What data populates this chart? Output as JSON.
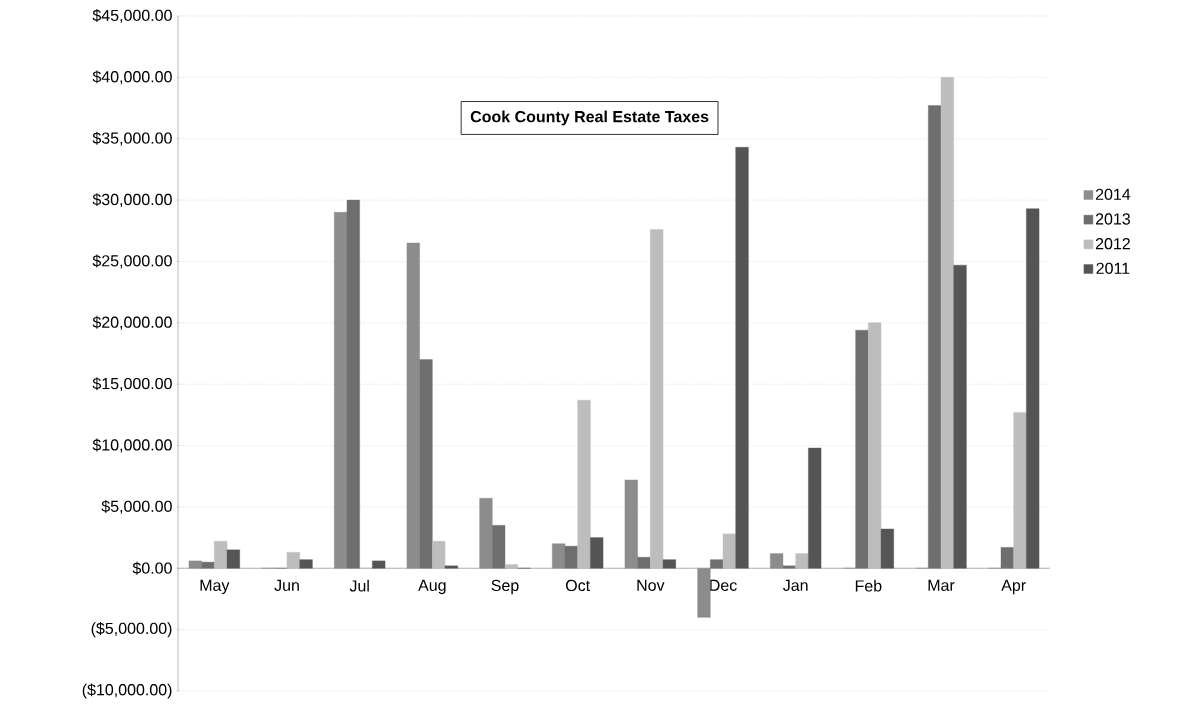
{
  "chart_data": {
    "type": "bar",
    "title": "Cook County Real Estate Taxes",
    "categories": [
      "May",
      "Jun",
      "Jul",
      "Aug",
      "Sep",
      "Oct",
      "Nov",
      "Dec",
      "Jan",
      "Feb",
      "Mar",
      "Apr"
    ],
    "series": [
      {
        "name": "2014",
        "color": "#8c8c8c",
        "values": [
          600,
          0,
          29000,
          26500,
          5700,
          2000,
          7200,
          -4000,
          1200,
          0,
          0,
          0
        ]
      },
      {
        "name": "2013",
        "color": "#6e6e6e",
        "values": [
          500,
          0,
          30000,
          17000,
          3500,
          1800,
          900,
          700,
          200,
          19400,
          37700,
          1700
        ]
      },
      {
        "name": "2012",
        "color": "#bdbdbd",
        "values": [
          2200,
          1300,
          0,
          2200,
          300,
          13700,
          27600,
          2800,
          1200,
          20000,
          40000,
          12700
        ]
      },
      {
        "name": "2011",
        "color": "#555555",
        "values": [
          1500,
          700,
          600,
          200,
          0,
          2500,
          700,
          34300,
          9800,
          3200,
          24700,
          29300
        ]
      }
    ],
    "ylim": [
      -10000,
      45000
    ],
    "yticks": [
      {
        "value": -10000,
        "label": "($10,000.00)"
      },
      {
        "value": -5000,
        "label": "($5,000.00)"
      },
      {
        "value": 0,
        "label": "$0.00"
      },
      {
        "value": 5000,
        "label": "$5,000.00"
      },
      {
        "value": 10000,
        "label": "$10,000.00"
      },
      {
        "value": 15000,
        "label": "$15,000.00"
      },
      {
        "value": 20000,
        "label": "$20,000.00"
      },
      {
        "value": 25000,
        "label": "$25,000.00"
      },
      {
        "value": 30000,
        "label": "$30,000.00"
      },
      {
        "value": 35000,
        "label": "$35,000.00"
      },
      {
        "value": 40000,
        "label": "$40,000.00"
      },
      {
        "value": 45000,
        "label": "$45,000.00"
      }
    ],
    "grid": "y",
    "legend": "right"
  }
}
